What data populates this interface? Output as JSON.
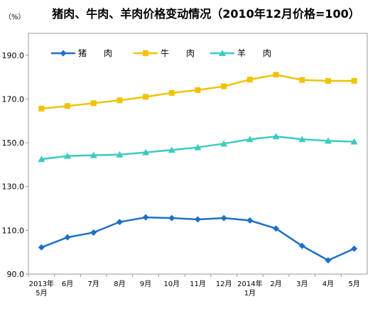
{
  "chart_data": {
    "type": "line",
    "title": "猪肉、牛肉、羊肉价格变动情况（2010年12月价格=100）",
    "unit_label": "（%）",
    "categories": [
      [
        "2013年",
        "5月"
      ],
      [
        "6月"
      ],
      [
        "7月"
      ],
      [
        "8月"
      ],
      [
        "9月"
      ],
      [
        "10月"
      ],
      [
        "11月"
      ],
      [
        "12月"
      ],
      [
        "2014年",
        "1月"
      ],
      [
        "2月"
      ],
      [
        "3月"
      ],
      [
        "4月"
      ],
      [
        "5月"
      ]
    ],
    "ylim": [
      90,
      200
    ],
    "yticks": [
      "90.0",
      "110.0",
      "130.0",
      "150.0",
      "170.0",
      "190.0"
    ],
    "grid": false,
    "legend_position": "top-left",
    "series": [
      {
        "name": "猪　　肉",
        "color": "#1f6fc6",
        "marker": "diamond",
        "values": [
          102.2,
          106.8,
          109.0,
          113.8,
          115.9,
          115.6,
          115.0,
          115.6,
          114.5,
          110.8,
          102.9,
          96.3,
          101.6
        ]
      },
      {
        "name": "牛　　肉",
        "color": "#f2c200",
        "marker": "square",
        "values": [
          165.6,
          166.8,
          168.1,
          169.4,
          171.0,
          172.8,
          174.1,
          175.8,
          178.9,
          181.1,
          178.7,
          178.3,
          178.3
        ]
      },
      {
        "name": "羊　　肉",
        "color": "#3ccbc0",
        "marker": "triangle",
        "values": [
          142.5,
          144.0,
          144.3,
          144.6,
          145.6,
          146.7,
          147.9,
          149.6,
          151.6,
          152.9,
          151.6,
          150.9,
          150.5
        ]
      }
    ]
  }
}
